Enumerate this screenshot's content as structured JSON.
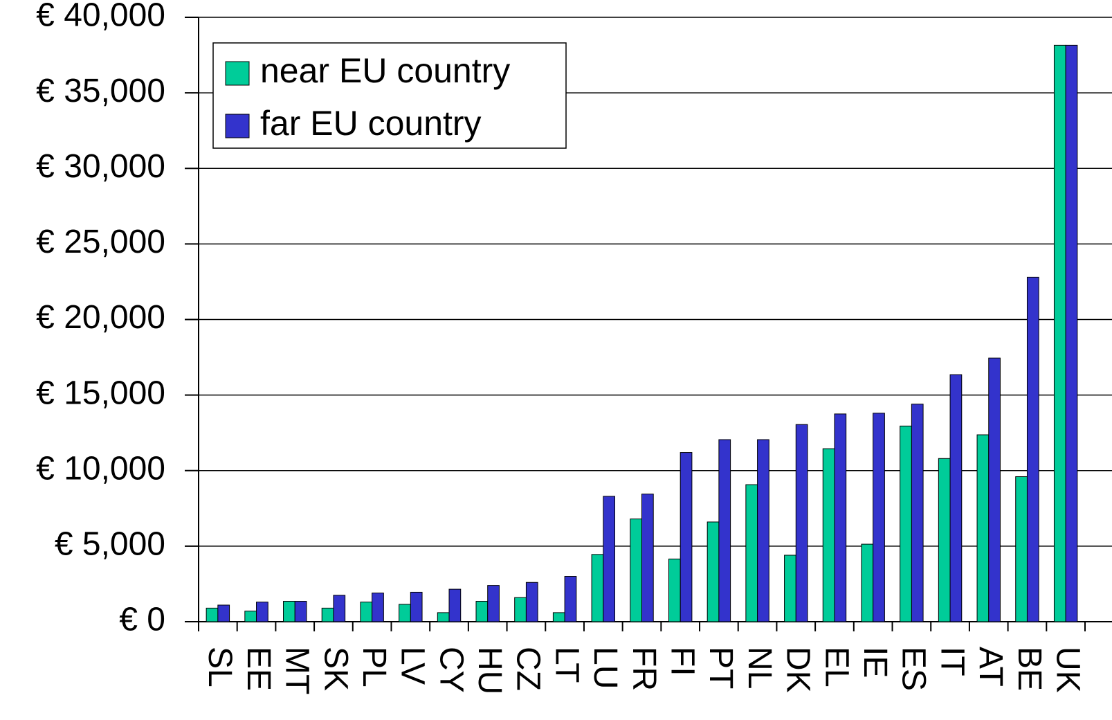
{
  "chart_data": {
    "type": "bar",
    "categories": [
      "SL",
      "EE",
      "MT",
      "SK",
      "PL",
      "LV",
      "CY",
      "HU",
      "CZ",
      "LT",
      "LU",
      "FR",
      "FI",
      "PT",
      "NL",
      "DK",
      "EL",
      "IE",
      "ES",
      "IT",
      "AT",
      "BE",
      "UK"
    ],
    "series": [
      {
        "name": "near EU country",
        "color": "#00cc99",
        "values": [
          900,
          700,
          1350,
          900,
          1300,
          1150,
          600,
          1350,
          1600,
          600,
          4450,
          6800,
          4150,
          6600,
          9070,
          4400,
          11450,
          5130,
          12950,
          10800,
          12370,
          9600,
          38150
        ]
      },
      {
        "name": "far EU country",
        "color": "#3333cc",
        "values": [
          1100,
          1300,
          1350,
          1750,
          1900,
          1950,
          2150,
          2400,
          2600,
          3000,
          8300,
          8450,
          11200,
          12050,
          12050,
          13050,
          13750,
          13800,
          14400,
          16350,
          17450,
          22800,
          38150
        ]
      }
    ],
    "ylim": [
      0,
      40000
    ],
    "yticks": [
      {
        "value": 0,
        "label": "€ 0"
      },
      {
        "value": 5000,
        "label": "€ 5,000"
      },
      {
        "value": 10000,
        "label": "€ 10,000"
      },
      {
        "value": 15000,
        "label": "€ 15,000"
      },
      {
        "value": 20000,
        "label": "€ 20,000"
      },
      {
        "value": 25000,
        "label": "€ 25,000"
      },
      {
        "value": 30000,
        "label": "€ 30,000"
      },
      {
        "value": 35000,
        "label": "€ 35,000"
      },
      {
        "value": 40000,
        "label": "€ 40,000"
      }
    ],
    "grid": true,
    "legend": "upper left"
  }
}
